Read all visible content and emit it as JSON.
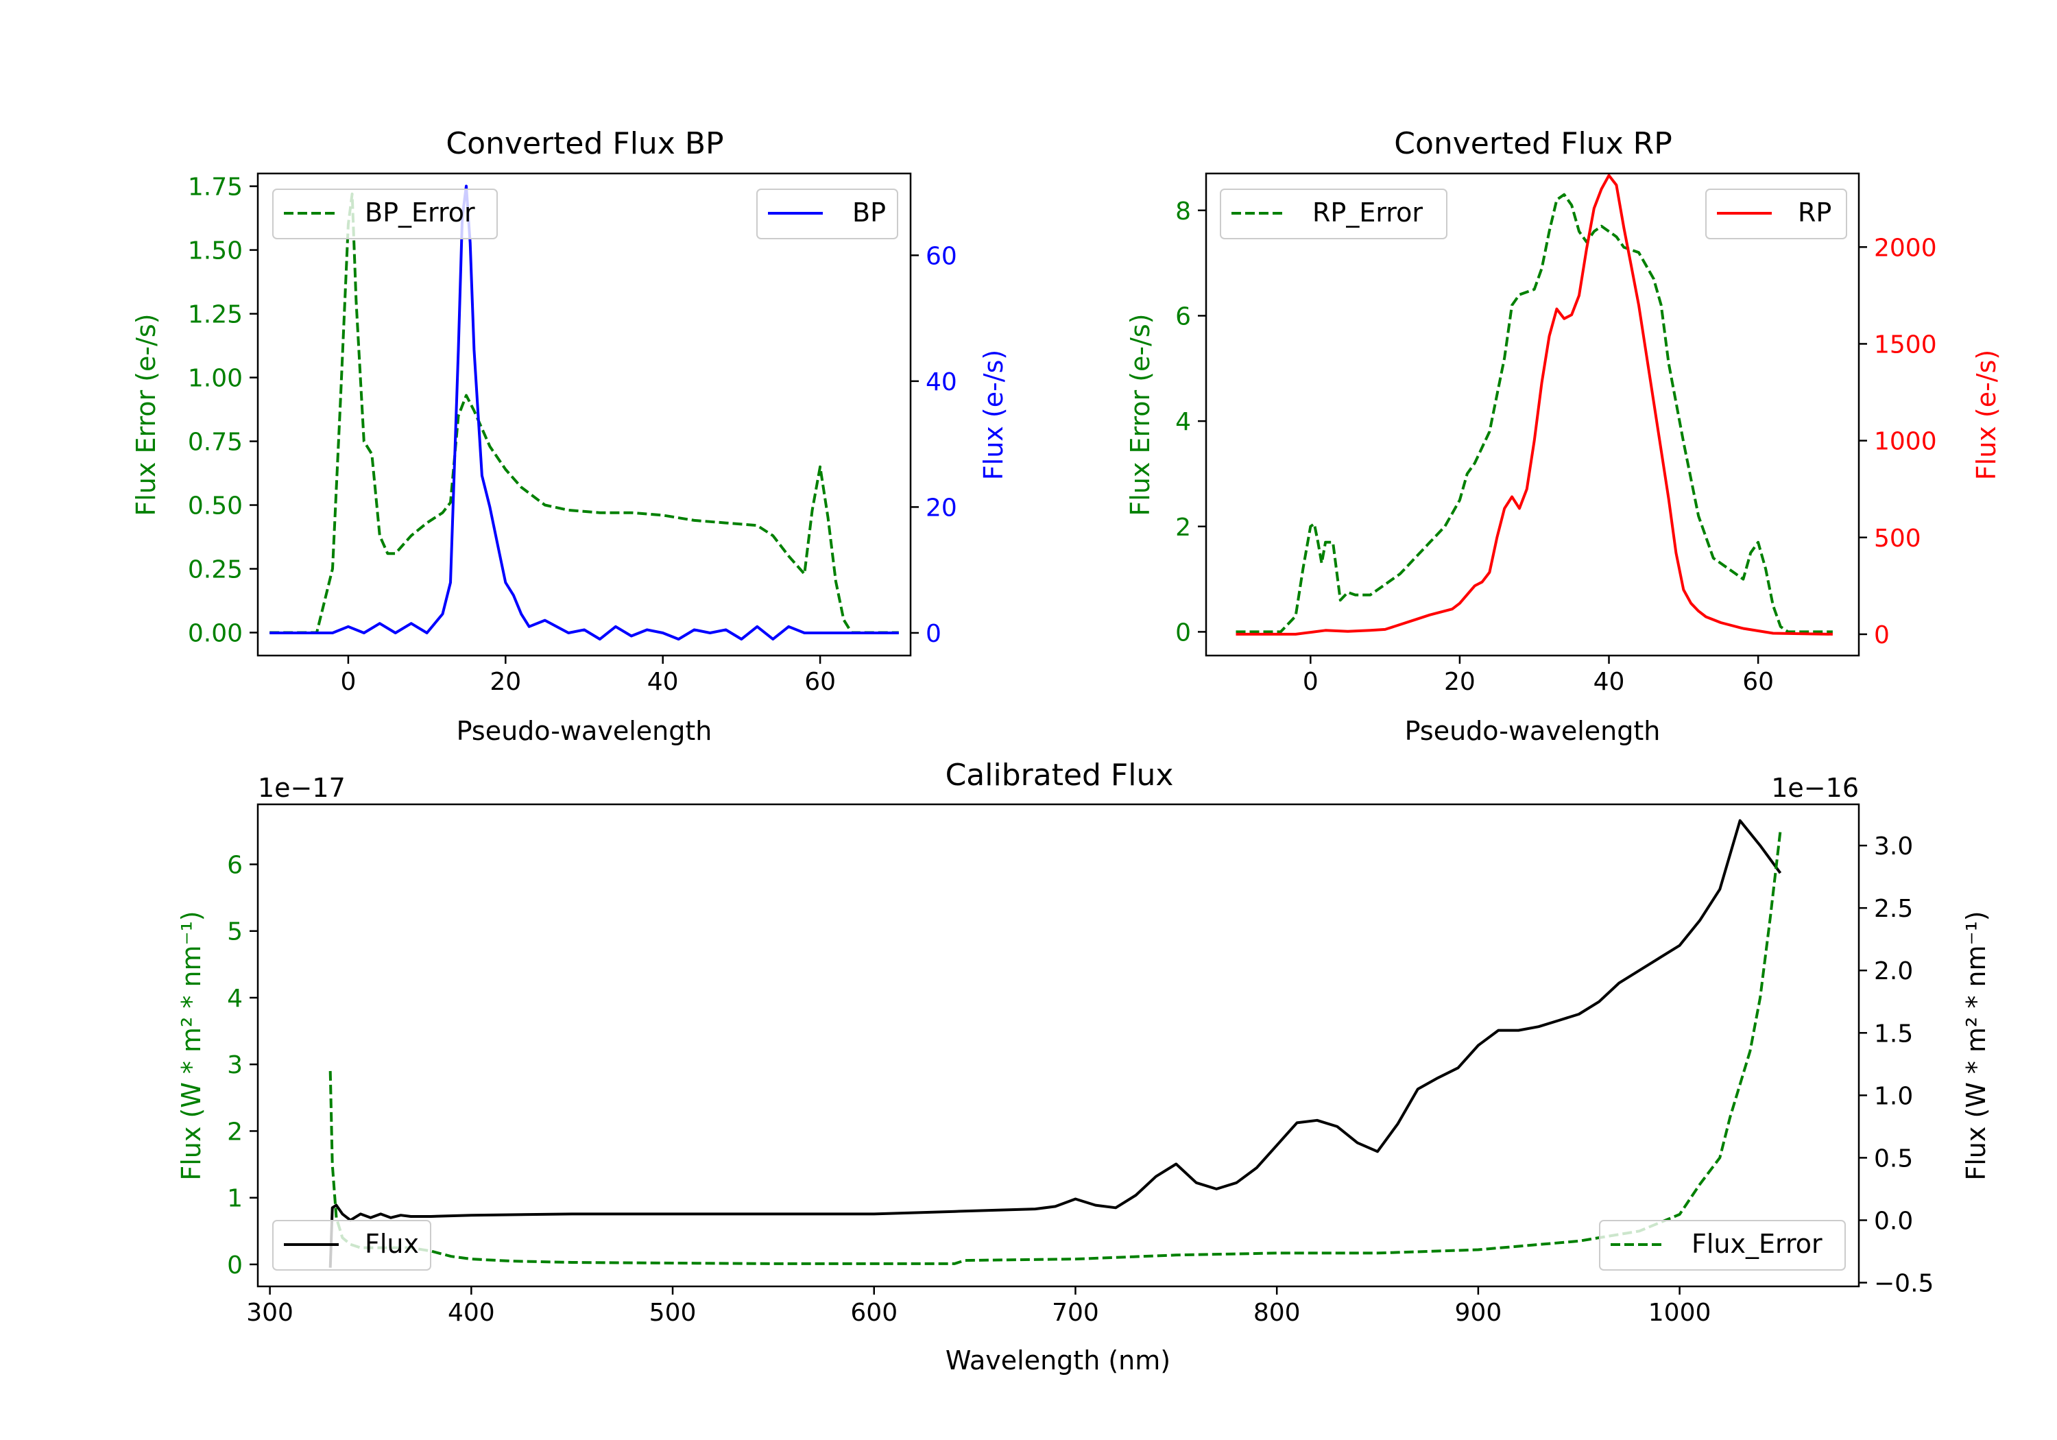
{
  "chart_data": [
    {
      "type": "line",
      "id": "bp",
      "title": "Converted Flux BP",
      "xlabel": "Pseudo-wavelength",
      "ylabel_left": "Flux Error (e-/s)",
      "ylabel_right": "Flux (e-/s)",
      "xlim": [
        -11.5,
        71.5
      ],
      "ylim_left": [
        -0.09,
        1.8
      ],
      "ylim_right": [
        -3.6,
        73.0
      ],
      "xticks": [
        0,
        20,
        40,
        60
      ],
      "yticks_left": [
        0,
        0.25,
        0.5,
        0.75,
        1.0,
        1.25,
        1.5,
        1.75
      ],
      "yticks_left_labels": [
        "0.00",
        "0.25",
        "0.50",
        "0.75",
        "1.00",
        "1.25",
        "1.50",
        "1.75"
      ],
      "yticks_right": [
        0,
        20,
        40,
        60
      ],
      "yticks_right_labels": [
        "0",
        "20",
        "40",
        "60"
      ],
      "colors": {
        "left_axis": "#008000",
        "right_axis": "#0000ff"
      },
      "legend_left": "BP_Error",
      "legend_right": "BP",
      "series": [
        {
          "name": "BP_Error",
          "axis": "left",
          "color": "#008000",
          "dash": true,
          "x": [
            -10,
            -4,
            -2,
            -1,
            0,
            0.5,
            1,
            2,
            3,
            4,
            5,
            6,
            8,
            10,
            12,
            13,
            14,
            15,
            16,
            18,
            20,
            22,
            25,
            28,
            32,
            36,
            40,
            44,
            48,
            52,
            54,
            56,
            58,
            59,
            60,
            61,
            62,
            63,
            64,
            70
          ],
          "y": [
            0,
            0,
            0.25,
            0.9,
            1.6,
            1.72,
            1.3,
            0.75,
            0.7,
            0.38,
            0.31,
            0.31,
            0.38,
            0.43,
            0.47,
            0.51,
            0.85,
            0.93,
            0.87,
            0.73,
            0.64,
            0.57,
            0.5,
            0.48,
            0.47,
            0.47,
            0.46,
            0.44,
            0.43,
            0.42,
            0.38,
            0.3,
            0.23,
            0.48,
            0.65,
            0.45,
            0.2,
            0.05,
            0,
            0
          ]
        },
        {
          "name": "BP",
          "axis": "right",
          "color": "#0000ff",
          "dash": false,
          "x": [
            -10,
            -2,
            0,
            2,
            4,
            6,
            8,
            10,
            12,
            13,
            14,
            14.5,
            15,
            15.5,
            16,
            17,
            18,
            19,
            20,
            21,
            22,
            23,
            25,
            28,
            30,
            32,
            34,
            36,
            38,
            40,
            42,
            44,
            46,
            48,
            50,
            52,
            54,
            56,
            58,
            60,
            62,
            66,
            70
          ],
          "y": [
            0,
            0,
            1,
            0,
            1.5,
            0,
            1.5,
            0,
            3,
            8,
            45,
            66,
            71,
            62,
            45,
            25,
            20,
            14,
            8,
            6,
            3,
            1,
            2,
            0,
            0.5,
            -1,
            1,
            -0.5,
            0.5,
            0,
            -1,
            0.5,
            0,
            0.5,
            -1,
            1,
            -1,
            1,
            0,
            0,
            0,
            0,
            0
          ]
        }
      ]
    },
    {
      "type": "line",
      "id": "rp",
      "title": "Converted Flux RP",
      "xlabel": "Pseudo-wavelength",
      "ylabel_left": "Flux Error (e-/s)",
      "ylabel_right": "Flux (e-/s)",
      "xlim": [
        -14,
        73.5
      ],
      "ylim_left": [
        -0.45,
        8.7
      ],
      "ylim_right": [
        -110,
        2380
      ],
      "xticks": [
        0,
        20,
        40,
        60
      ],
      "yticks_left": [
        0,
        2,
        4,
        6,
        8
      ],
      "yticks_left_labels": [
        "0",
        "2",
        "4",
        "6",
        "8"
      ],
      "yticks_right": [
        0,
        500,
        1000,
        1500,
        2000
      ],
      "yticks_right_labels": [
        "0",
        "500",
        "1000",
        "1500",
        "2000"
      ],
      "colors": {
        "left_axis": "#008000",
        "right_axis": "#ff0000"
      },
      "legend_left": "RP_Error",
      "legend_right": "RP",
      "series": [
        {
          "name": "RP_Error",
          "axis": "left",
          "color": "#008000",
          "dash": true,
          "x": [
            -10,
            -4,
            -2,
            -1,
            0,
            0.5,
            1,
            1.5,
            2,
            3,
            4,
            5,
            6,
            8,
            10,
            12,
            14,
            16,
            18,
            20,
            21,
            22,
            24,
            25,
            26,
            27,
            28,
            30,
            31,
            32,
            33,
            34,
            35,
            36,
            37,
            38,
            39,
            40,
            41,
            42,
            44,
            46,
            47,
            48,
            50,
            52,
            54,
            56,
            57,
            58,
            59,
            60,
            61,
            62,
            63,
            64,
            70
          ],
          "y": [
            0,
            0,
            0.3,
            1.2,
            2.0,
            2.05,
            1.7,
            1.3,
            1.7,
            1.7,
            0.6,
            0.75,
            0.7,
            0.7,
            0.9,
            1.1,
            1.4,
            1.7,
            2.0,
            2.5,
            3.0,
            3.2,
            3.8,
            4.5,
            5.2,
            6.2,
            6.4,
            6.5,
            6.9,
            7.6,
            8.2,
            8.3,
            8.1,
            7.6,
            7.4,
            7.6,
            7.7,
            7.6,
            7.5,
            7.3,
            7.2,
            6.7,
            6.2,
            5.1,
            3.6,
            2.2,
            1.4,
            1.2,
            1.1,
            1.0,
            1.5,
            1.7,
            1.2,
            0.5,
            0.1,
            0,
            0
          ]
        },
        {
          "name": "RP",
          "axis": "right",
          "color": "#ff0000",
          "dash": false,
          "x": [
            -10,
            -2,
            0,
            2,
            5,
            8,
            10,
            14,
            16,
            19,
            20,
            22,
            23,
            24,
            25,
            26,
            27,
            28,
            29,
            30,
            31,
            32,
            33,
            34,
            35,
            36,
            37,
            38,
            39,
            40,
            41,
            42,
            43,
            44,
            46,
            48,
            49,
            50,
            51,
            52,
            53,
            55,
            58,
            62,
            70
          ],
          "y": [
            0,
            0,
            10,
            20,
            15,
            20,
            25,
            75,
            100,
            130,
            160,
            250,
            270,
            320,
            500,
            650,
            710,
            650,
            750,
            1000,
            1300,
            1540,
            1680,
            1630,
            1650,
            1750,
            1990,
            2200,
            2300,
            2370,
            2320,
            2100,
            1900,
            1700,
            1200,
            700,
            420,
            230,
            160,
            120,
            90,
            60,
            30,
            5,
            0
          ]
        }
      ]
    },
    {
      "type": "line",
      "id": "calibrated",
      "title": "Calibrated Flux",
      "xlabel": "Wavelength (nm)",
      "ylabel_left": "Flux (W * m² * nm⁻¹)",
      "ylabel_right": "Flux (W * m² * nm⁻¹)",
      "offset_left": "1e−17",
      "offset_right": "1e−16",
      "xlim": [
        294,
        1089
      ],
      "ylim_left": [
        -0.33,
        6.9
      ],
      "ylim_right": [
        -0.53,
        3.33
      ],
      "xticks": [
        300,
        400,
        500,
        600,
        700,
        800,
        900,
        1000
      ],
      "yticks_left": [
        0,
        1,
        2,
        3,
        4,
        5,
        6
      ],
      "yticks_left_labels": [
        "0",
        "1",
        "2",
        "3",
        "4",
        "5",
        "6"
      ],
      "yticks_right": [
        -0.5,
        0,
        0.5,
        1.0,
        1.5,
        2.0,
        2.5,
        3.0
      ],
      "yticks_right_labels": [
        "−0.5",
        "0.0",
        "0.5",
        "1.0",
        "1.5",
        "2.0",
        "2.5",
        "3.0"
      ],
      "colors": {
        "left_axis": "#008000",
        "right_axis": "#000000"
      },
      "legend_left": "Flux",
      "legend_right": "Flux_Error",
      "series": [
        {
          "name": "Flux",
          "axis": "right",
          "color": "#000000",
          "dash": false,
          "x": [
            330,
            331,
            333,
            336,
            340,
            345,
            350,
            355,
            360,
            365,
            370,
            380,
            400,
            450,
            500,
            550,
            600,
            640,
            660,
            680,
            690,
            700,
            710,
            720,
            730,
            740,
            750,
            760,
            770,
            780,
            790,
            800,
            810,
            820,
            830,
            840,
            850,
            860,
            870,
            880,
            890,
            900,
            910,
            920,
            930,
            940,
            950,
            960,
            970,
            980,
            990,
            1000,
            1010,
            1020,
            1030,
            1040,
            1050
          ],
          "y": [
            -0.38,
            0.1,
            0.12,
            0.05,
            0.0,
            0.05,
            0.02,
            0.05,
            0.02,
            0.04,
            0.03,
            0.03,
            0.04,
            0.05,
            0.05,
            0.05,
            0.05,
            0.07,
            0.08,
            0.09,
            0.11,
            0.17,
            0.12,
            0.1,
            0.2,
            0.35,
            0.45,
            0.3,
            0.25,
            0.3,
            0.42,
            0.6,
            0.78,
            0.8,
            0.75,
            0.62,
            0.55,
            0.77,
            1.05,
            1.14,
            1.22,
            1.4,
            1.52,
            1.52,
            1.55,
            1.6,
            1.65,
            1.75,
            1.9,
            2.0,
            2.1,
            2.2,
            2.4,
            2.65,
            3.2,
            3.0,
            2.78
          ]
        },
        {
          "name": "Flux_Error",
          "axis": "left",
          "color": "#008000",
          "dash": true,
          "x": [
            330,
            331,
            333,
            336,
            340,
            345,
            350,
            360,
            370,
            380,
            390,
            400,
            420,
            450,
            500,
            550,
            600,
            640,
            645,
            700,
            750,
            800,
            850,
            900,
            950,
            980,
            1000,
            1010,
            1020,
            1025,
            1030,
            1035,
            1040,
            1045,
            1050
          ],
          "y": [
            2.9,
            1.5,
            0.7,
            0.4,
            0.3,
            0.25,
            0.25,
            0.25,
            0.25,
            0.2,
            0.12,
            0.08,
            0.05,
            0.03,
            0.02,
            0.01,
            0.01,
            0.01,
            0.06,
            0.08,
            0.14,
            0.17,
            0.17,
            0.22,
            0.35,
            0.5,
            0.75,
            1.2,
            1.6,
            2.2,
            2.7,
            3.2,
            4.0,
            5.2,
            6.5
          ]
        }
      ]
    }
  ]
}
